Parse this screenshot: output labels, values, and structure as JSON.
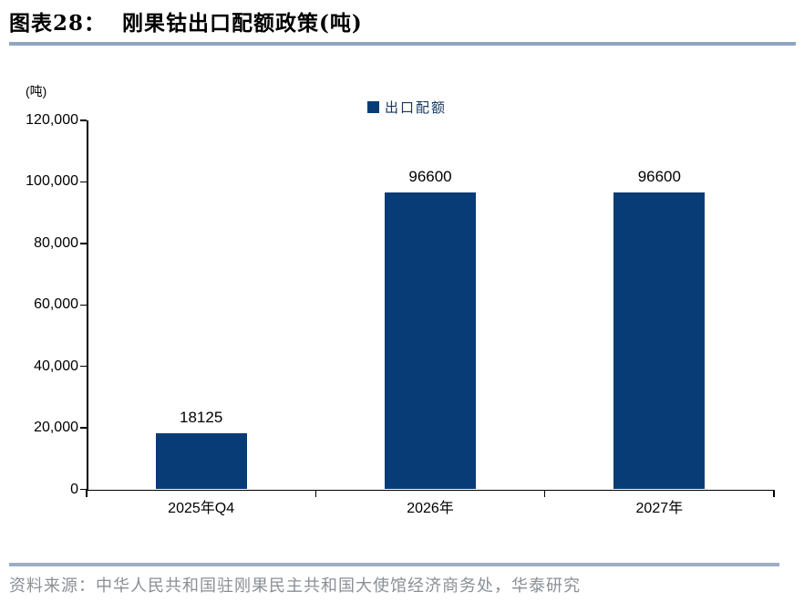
{
  "header": {
    "figure_label": "图表28：",
    "title": "刚果钴出口配额政策(吨)"
  },
  "legend": {
    "items": [
      {
        "label": "出口配额"
      }
    ]
  },
  "chart_data": {
    "type": "bar",
    "title": "刚果钴出口配额政策(吨)",
    "unit_label": "(吨)",
    "categories": [
      "2025年Q4",
      "2026年",
      "2027年"
    ],
    "series": [
      {
        "name": "出口配额",
        "values": [
          18125,
          96600,
          96600
        ]
      }
    ],
    "data_labels": [
      "18125",
      "96600",
      "96600"
    ],
    "ylim": [
      0,
      120000
    ],
    "ytick_values": [
      0,
      20000,
      40000,
      60000,
      80000,
      100000,
      120000
    ],
    "ytick_labels": [
      "0",
      "20,000",
      "40,000",
      "60,000",
      "80,000",
      "100,000",
      "120,000"
    ],
    "legend_position": "top-center",
    "grid": false
  },
  "footer": {
    "source": "资料来源：中华人民共和国驻刚果民主共和国大使馆经济商务处，华泰研究"
  },
  "colors": {
    "bar": "#083C76",
    "header_rule": "#8FA6C2",
    "footer_rule": "#9CAEC2",
    "axis": "#000000",
    "legend_text": "#16365F",
    "source_text": "#8A9096"
  }
}
